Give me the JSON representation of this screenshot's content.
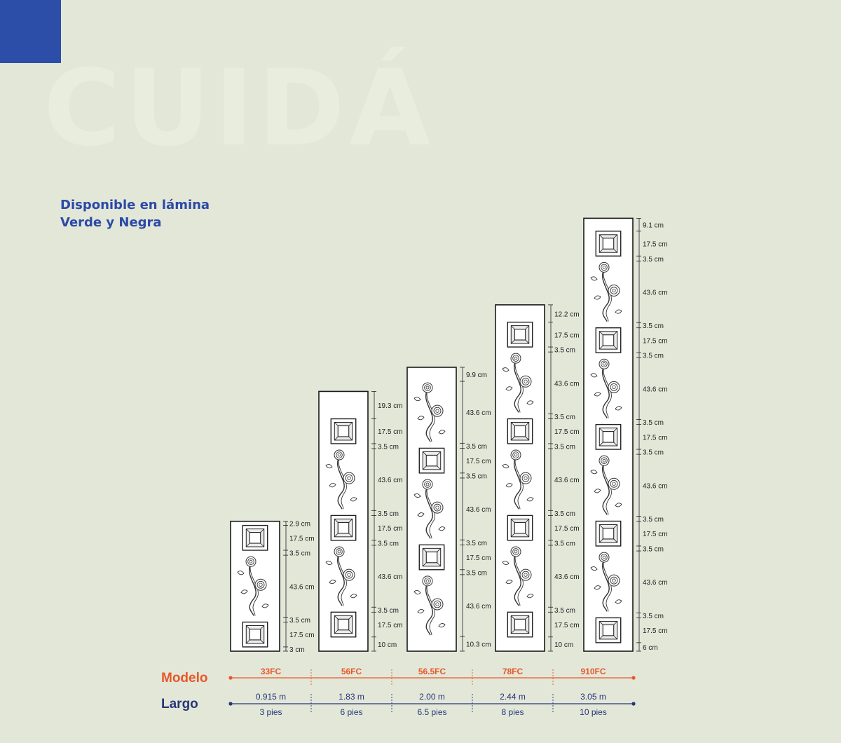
{
  "background_color": "#e2e7d8",
  "accent_blue": "#2d4ea8",
  "accent_orange": "#e8572a",
  "navy": "#27357a",
  "background_word": "CUIDÁ",
  "availability": {
    "line1": "Disponible en lámina",
    "line2": "Verde y Negra"
  },
  "legend": {
    "modelo_label": "Modelo",
    "largo_label": "Largo"
  },
  "panels": [
    {
      "model": "33FC",
      "length_m": "0.915 m",
      "length_ft": "3 pies",
      "segments": [
        {
          "kind": "space",
          "cm": 2.9
        },
        {
          "kind": "square",
          "cm": 17.5
        },
        {
          "kind": "space",
          "cm": 3.5
        },
        {
          "kind": "flower",
          "cm": 43.6
        },
        {
          "kind": "space",
          "cm": 3.5
        },
        {
          "kind": "square",
          "cm": 17.5
        },
        {
          "kind": "space",
          "cm": 3
        }
      ]
    },
    {
      "model": "56FC",
      "length_m": "1.83 m",
      "length_ft": "6 pies",
      "segments": [
        {
          "kind": "space",
          "cm": 19.3
        },
        {
          "kind": "square",
          "cm": 17.5
        },
        {
          "kind": "space",
          "cm": 3.5
        },
        {
          "kind": "flower",
          "cm": 43.6
        },
        {
          "kind": "space",
          "cm": 3.5
        },
        {
          "kind": "square",
          "cm": 17.5
        },
        {
          "kind": "space",
          "cm": 3.5
        },
        {
          "kind": "flower",
          "cm": 43.6
        },
        {
          "kind": "space",
          "cm": 3.5
        },
        {
          "kind": "square",
          "cm": 17.5
        },
        {
          "kind": "space",
          "cm": 10
        }
      ]
    },
    {
      "model": "56.5FC",
      "length_m": "2.00 m",
      "length_ft": "6.5 pies",
      "segments": [
        {
          "kind": "space",
          "cm": 9.9
        },
        {
          "kind": "flower",
          "cm": 43.6
        },
        {
          "kind": "space",
          "cm": 3.5
        },
        {
          "kind": "square",
          "cm": 17.5
        },
        {
          "kind": "space",
          "cm": 3.5
        },
        {
          "kind": "flower",
          "cm": 43.6
        },
        {
          "kind": "space",
          "cm": 3.5
        },
        {
          "kind": "square",
          "cm": 17.5
        },
        {
          "kind": "space",
          "cm": 3.5
        },
        {
          "kind": "flower",
          "cm": 43.6
        },
        {
          "kind": "space",
          "cm": 10.3
        }
      ]
    },
    {
      "model": "78FC",
      "length_m": "2.44 m",
      "length_ft": "8 pies",
      "segments": [
        {
          "kind": "space",
          "cm": 12.2
        },
        {
          "kind": "square",
          "cm": 17.5
        },
        {
          "kind": "space",
          "cm": 3.5
        },
        {
          "kind": "flower",
          "cm": 43.6
        },
        {
          "kind": "space",
          "cm": 3.5
        },
        {
          "kind": "square",
          "cm": 17.5
        },
        {
          "kind": "space",
          "cm": 3.5
        },
        {
          "kind": "flower",
          "cm": 43.6
        },
        {
          "kind": "space",
          "cm": 3.5
        },
        {
          "kind": "square",
          "cm": 17.5
        },
        {
          "kind": "space",
          "cm": 3.5
        },
        {
          "kind": "flower",
          "cm": 43.6
        },
        {
          "kind": "space",
          "cm": 3.5
        },
        {
          "kind": "square",
          "cm": 17.5
        },
        {
          "kind": "space",
          "cm": 10
        }
      ]
    },
    {
      "model": "910FC",
      "length_m": "3.05 m",
      "length_ft": "10 pies",
      "segments": [
        {
          "kind": "space",
          "cm": 9.1
        },
        {
          "kind": "square",
          "cm": 17.5
        },
        {
          "kind": "space",
          "cm": 3.5
        },
        {
          "kind": "flower",
          "cm": 43.6
        },
        {
          "kind": "space",
          "cm": 3.5
        },
        {
          "kind": "square",
          "cm": 17.5
        },
        {
          "kind": "space",
          "cm": 3.5
        },
        {
          "kind": "flower",
          "cm": 43.6
        },
        {
          "kind": "space",
          "cm": 3.5
        },
        {
          "kind": "square",
          "cm": 17.5
        },
        {
          "kind": "space",
          "cm": 3.5
        },
        {
          "kind": "flower",
          "cm": 43.6
        },
        {
          "kind": "space",
          "cm": 3.5
        },
        {
          "kind": "square",
          "cm": 17.5
        },
        {
          "kind": "space",
          "cm": 3.5
        },
        {
          "kind": "flower",
          "cm": 43.6
        },
        {
          "kind": "space",
          "cm": 3.5
        },
        {
          "kind": "square",
          "cm": 17.5
        },
        {
          "kind": "space",
          "cm": 6
        }
      ]
    }
  ]
}
